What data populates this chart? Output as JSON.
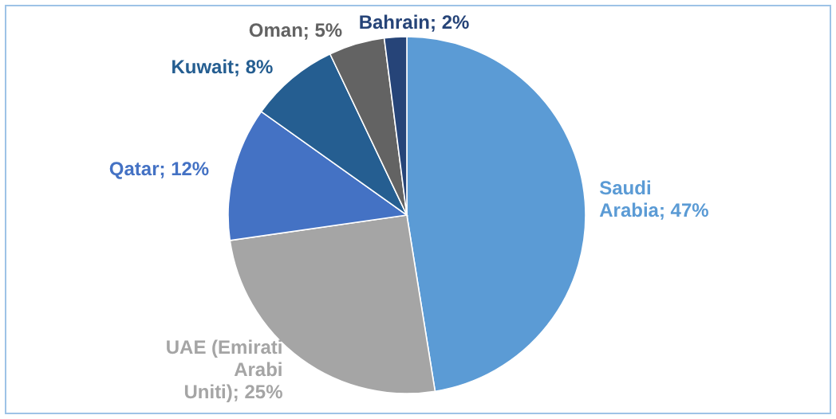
{
  "chart_data": {
    "type": "pie",
    "categories": [
      "Saudi Arabia",
      "UAE (Emirati Arabi Uniti)",
      "Qatar",
      "Kuwait",
      "Oman",
      "Bahrain"
    ],
    "values": [
      47,
      25,
      12,
      8,
      5,
      2
    ],
    "value_labels": [
      "47%",
      "25%",
      "12%",
      "8%",
      "5%",
      "2%"
    ],
    "colors": [
      "#5b9bd5",
      "#a5a5a5",
      "#4472c4",
      "#255e91",
      "#636363",
      "#264478"
    ]
  }
}
